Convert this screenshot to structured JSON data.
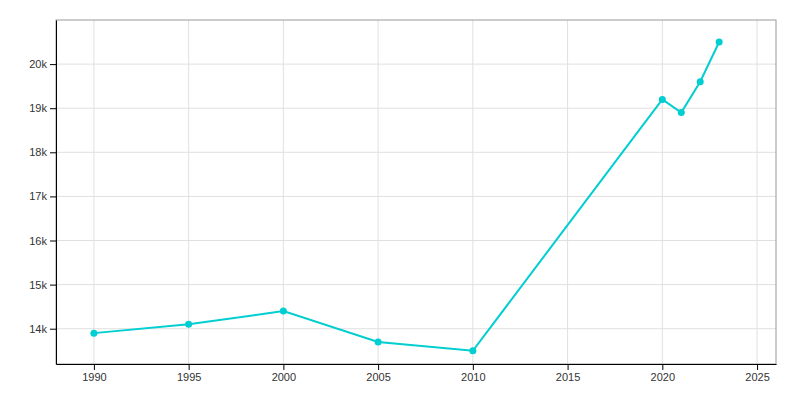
{
  "chart_data": {
    "type": "line",
    "x": [
      1990,
      1995,
      2000,
      2005,
      2010,
      2020,
      2021,
      2022,
      2023
    ],
    "values": [
      13900,
      14100,
      14400,
      13700,
      13500,
      19200,
      18900,
      19600,
      20500
    ],
    "color": "#00CED1",
    "marker": "circle",
    "xlim": [
      1988,
      2026
    ],
    "ylim": [
      13200,
      21000
    ],
    "xticks": [
      1990,
      1995,
      2000,
      2005,
      2010,
      2015,
      2020,
      2025
    ],
    "yticks": [
      {
        "value": 14000,
        "label": "14k"
      },
      {
        "value": 15000,
        "label": "15k"
      },
      {
        "value": 16000,
        "label": "16k"
      },
      {
        "value": 17000,
        "label": "17k"
      },
      {
        "value": 18000,
        "label": "18k"
      },
      {
        "value": 19000,
        "label": "19k"
      },
      {
        "value": 20000,
        "label": "20k"
      }
    ],
    "grid": true
  }
}
